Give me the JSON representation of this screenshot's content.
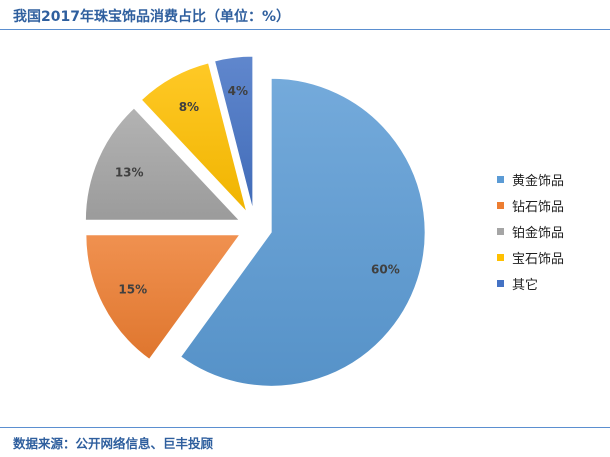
{
  "title": "我国2017年珠宝饰品消费占比（单位：%）",
  "source": "数据来源：公开网络信息、巨丰投顾",
  "chart_data": {
    "type": "pie",
    "exploded": true,
    "legend_position": "right",
    "slices": [
      {
        "label": "黄金饰品",
        "value": 60,
        "value_label": "60%",
        "color": "#5b9bd5"
      },
      {
        "label": "钻石饰品",
        "value": 15,
        "value_label": "15%",
        "color": "#ed7d31"
      },
      {
        "label": "铂金饰品",
        "value": 13,
        "value_label": "13%",
        "color": "#a5a5a5"
      },
      {
        "label": "宝石饰品",
        "value": 8,
        "value_label": "8%",
        "color": "#ffc000"
      },
      {
        "label": "其它",
        "value": 4,
        "value_label": "4%",
        "color": "#4472c4"
      }
    ]
  }
}
